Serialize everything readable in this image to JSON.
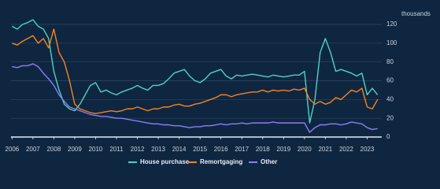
{
  "chart_data": {
    "type": "line",
    "y_label": "thousands",
    "x": [
      2006,
      2006.25,
      2006.5,
      2006.75,
      2007,
      2007.25,
      2007.5,
      2007.75,
      2008,
      2008.25,
      2008.5,
      2008.75,
      2009,
      2009.25,
      2009.5,
      2009.75,
      2010,
      2010.25,
      2010.5,
      2010.75,
      2011,
      2011.25,
      2011.5,
      2011.75,
      2012,
      2012.25,
      2012.5,
      2012.75,
      2013,
      2013.25,
      2013.5,
      2013.75,
      2014,
      2014.25,
      2014.5,
      2014.75,
      2015,
      2015.25,
      2015.5,
      2015.75,
      2016,
      2016.25,
      2016.5,
      2016.75,
      2017,
      2017.25,
      2017.5,
      2017.75,
      2018,
      2018.25,
      2018.5,
      2018.75,
      2019,
      2019.25,
      2019.5,
      2019.75,
      2020,
      2020.25,
      2020.5,
      2020.75,
      2021,
      2021.25,
      2021.5,
      2021.75,
      2022,
      2022.25,
      2022.5,
      2022.75,
      2023,
      2023.25,
      2023.5
    ],
    "series": [
      {
        "name": "House purchase",
        "color": "#4fd1c5",
        "values": [
          118,
          115,
          120,
          122,
          125,
          118,
          115,
          105,
          70,
          50,
          35,
          30,
          28,
          35,
          45,
          55,
          58,
          48,
          50,
          47,
          45,
          48,
          50,
          52,
          55,
          52,
          50,
          55,
          55,
          57,
          62,
          68,
          70,
          72,
          65,
          60,
          58,
          62,
          68,
          70,
          72,
          65,
          62,
          66,
          65,
          66,
          67,
          66,
          65,
          64,
          66,
          65,
          64,
          65,
          66,
          66,
          70,
          15,
          40,
          90,
          105,
          90,
          70,
          72,
          70,
          68,
          65,
          68,
          45,
          52,
          45
        ]
      },
      {
        "name": "Remortgaging",
        "color": "#f5831f",
        "values": [
          100,
          98,
          102,
          105,
          108,
          100,
          105,
          95,
          115,
          90,
          80,
          60,
          35,
          30,
          28,
          26,
          25,
          26,
          27,
          28,
          27,
          28,
          30,
          30,
          32,
          30,
          28,
          30,
          30,
          32,
          32,
          34,
          35,
          33,
          33,
          35,
          36,
          38,
          40,
          42,
          45,
          45,
          43,
          45,
          46,
          47,
          48,
          48,
          50,
          48,
          50,
          49,
          50,
          49,
          51,
          50,
          52,
          40,
          35,
          38,
          35,
          37,
          42,
          40,
          45,
          50,
          48,
          52,
          32,
          30,
          40
        ]
      },
      {
        "name": "Other",
        "color": "#8d7cf8",
        "values": [
          75,
          74,
          76,
          76,
          78,
          75,
          68,
          62,
          55,
          45,
          38,
          32,
          30,
          28,
          26,
          24,
          23,
          22,
          22,
          21,
          20,
          20,
          19,
          18,
          17,
          16,
          15,
          14,
          14,
          13,
          13,
          12,
          12,
          11,
          10,
          11,
          11,
          12,
          12,
          13,
          14,
          13,
          14,
          14,
          15,
          14,
          15,
          15,
          15,
          15,
          16,
          15,
          15,
          15,
          15,
          15,
          15,
          5,
          10,
          13,
          13,
          14,
          14,
          13,
          14,
          16,
          15,
          14,
          10,
          8,
          9
        ]
      }
    ],
    "xlim": [
      2005.95,
      2023.7
    ],
    "xticks": [
      2006,
      2007,
      2008,
      2009,
      2010,
      2011,
      2012,
      2013,
      2014,
      2015,
      2016,
      2017,
      2018,
      2019,
      2020,
      2021,
      2022,
      2023
    ],
    "ylim": [
      0,
      120
    ],
    "yticks": [
      0,
      20,
      40,
      60,
      80,
      100,
      120
    ],
    "grid": true,
    "legend": "bottom"
  }
}
